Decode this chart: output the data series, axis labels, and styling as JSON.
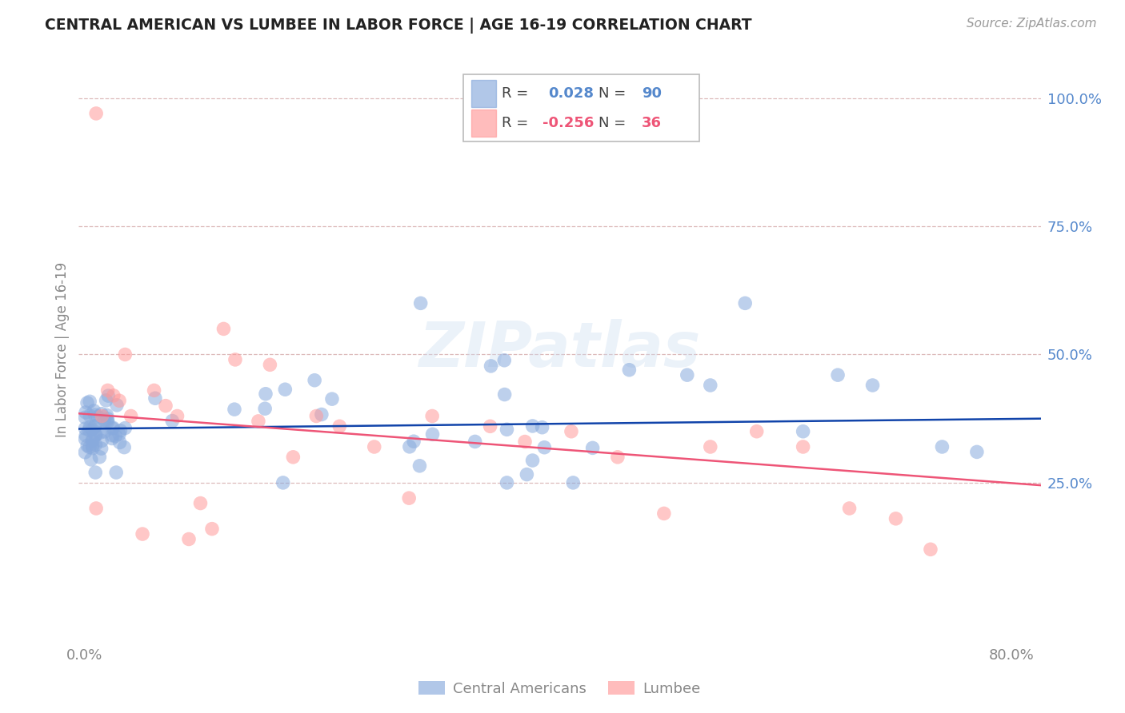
{
  "title": "CENTRAL AMERICAN VS LUMBEE IN LABOR FORCE | AGE 16-19 CORRELATION CHART",
  "source": "Source: ZipAtlas.com",
  "ylabel": "In Labor Force | Age 16-19",
  "blue_color": "#88AADD",
  "pink_color": "#FF9999",
  "line_blue": "#1144AA",
  "line_pink": "#EE5577",
  "tick_color": "#5588CC",
  "axis_color": "#888888",
  "grid_color": "#DDBBBB",
  "r_blue": 0.028,
  "n_blue": 90,
  "r_pink": -0.256,
  "n_pink": 36,
  "legend_entries": [
    "Central Americans",
    "Lumbee"
  ],
  "blue_line_y_at_x0": 0.355,
  "blue_line_y_at_x80": 0.375,
  "pink_line_y_at_x0": 0.385,
  "pink_line_y_at_x80": 0.245,
  "ylim_low": -0.06,
  "ylim_high": 1.08,
  "xlim_low": -0.005,
  "xlim_high": 0.825
}
